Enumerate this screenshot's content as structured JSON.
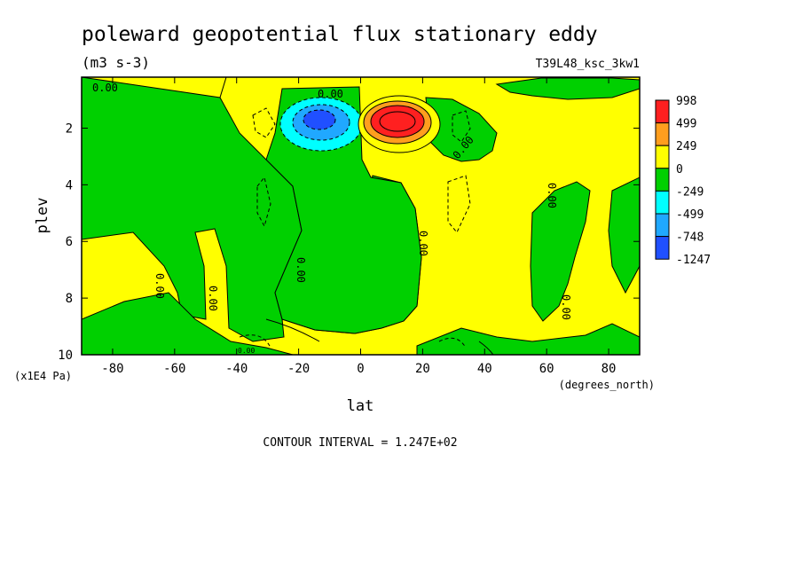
{
  "chart_data": {
    "type": "heatmap",
    "title": "poleward geopotential flux stationary eddy",
    "units": "(m3 s-3)",
    "run_label": "T39L48_ksc_3kw1",
    "xlabel": "lat",
    "x_unit": "(degrees_north)",
    "ylabel": "plev",
    "y_unit": "(x1E4 Pa)",
    "xlim": [
      -90,
      90
    ],
    "ylim": [
      10,
      0.2
    ],
    "x_ticks": [
      -80,
      -60,
      -40,
      -20,
      0,
      20,
      40,
      60,
      80
    ],
    "x_tick_labels": [
      "-80",
      "-60",
      "-40",
      "-20",
      "0",
      "20",
      "40",
      "60",
      "80"
    ],
    "y_ticks": [
      2,
      4,
      6,
      8,
      10
    ],
    "y_tick_labels": [
      "2",
      "4",
      "6",
      "8",
      "10"
    ],
    "contour_interval_text": "CONTOUR INTERVAL = 1.247E+02",
    "contour_labels": [
      "0.00",
      "0.00",
      "0.00",
      "0.00",
      "0.00",
      "0.00",
      "0.00",
      "0.00",
      "0.00",
      "0.00"
    ],
    "colorbar": {
      "labels": [
        "998",
        "499",
        "249",
        "0",
        "-249",
        "-499",
        "-748",
        "-1247"
      ],
      "colors": [
        "#ff2020",
        "#ff9e1e",
        "#ffff00",
        "#00d000",
        "#00ffff",
        "#20a8ff",
        "#2050ff"
      ]
    },
    "features": [
      {
        "name": "negative core",
        "lat": -14,
        "plev": 1.7,
        "value": -1100
      },
      {
        "name": "positive core",
        "lat": 12,
        "plev": 1.7,
        "value": 900
      }
    ]
  }
}
